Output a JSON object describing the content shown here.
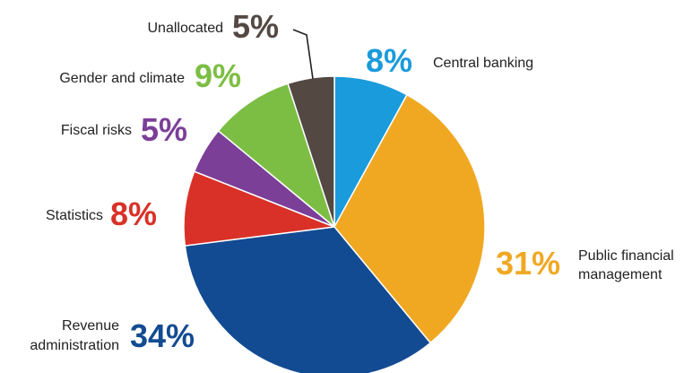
{
  "chart_data": {
    "type": "pie",
    "slices": [
      {
        "label": "Central banking",
        "value": 8,
        "display": "8%",
        "color": "#1a9bdc"
      },
      {
        "label": "Public financial management",
        "value": 31,
        "display": "31%",
        "color": "#f0a823"
      },
      {
        "label": "Revenue administration",
        "value": 34,
        "display": "34%",
        "color": "#134b92"
      },
      {
        "label": "Statistics",
        "value": 8,
        "display": "8%",
        "color": "#d93128"
      },
      {
        "label": "Fiscal risks",
        "value": 5,
        "display": "5%",
        "color": "#7b3f98"
      },
      {
        "label": "Gender and climate",
        "value": 9,
        "display": "9%",
        "color": "#7cbe44"
      },
      {
        "label": "Unallocated",
        "value": 5,
        "display": "5%",
        "color": "#544843"
      }
    ]
  }
}
